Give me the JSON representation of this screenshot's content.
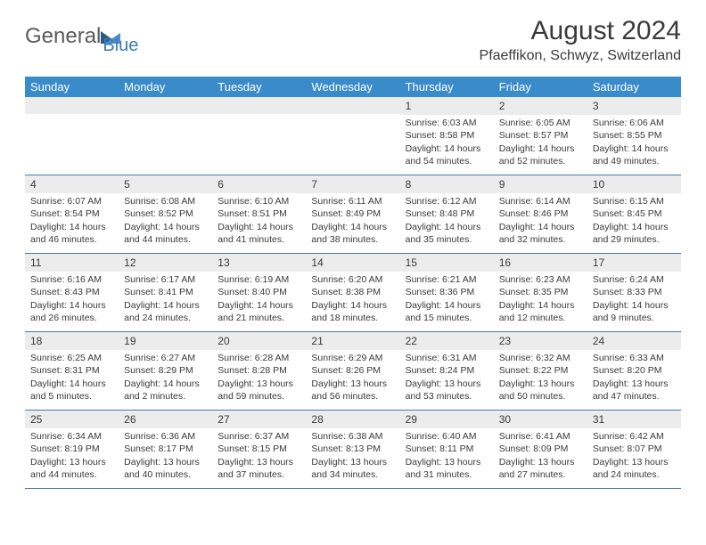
{
  "logo": {
    "text1": "General",
    "text2": "Blue",
    "iconColorDark": "#2a5a8a",
    "iconColorLight": "#4a8fc9"
  },
  "header": {
    "title": "August 2024",
    "location": "Pfaeffikon, Schwyz, Switzerland"
  },
  "colors": {
    "headerBar": "#3a8bc9",
    "dayHeaderBg": "#ececec",
    "borderColor": "#4a7aa8",
    "textColor": "#3a3a3a"
  },
  "weekdays": [
    "Sunday",
    "Monday",
    "Tuesday",
    "Wednesday",
    "Thursday",
    "Friday",
    "Saturday"
  ],
  "weeks": [
    [
      null,
      null,
      null,
      null,
      {
        "day": "1",
        "sunrise": "Sunrise: 6:03 AM",
        "sunset": "Sunset: 8:58 PM",
        "daylight": "Daylight: 14 hours and 54 minutes."
      },
      {
        "day": "2",
        "sunrise": "Sunrise: 6:05 AM",
        "sunset": "Sunset: 8:57 PM",
        "daylight": "Daylight: 14 hours and 52 minutes."
      },
      {
        "day": "3",
        "sunrise": "Sunrise: 6:06 AM",
        "sunset": "Sunset: 8:55 PM",
        "daylight": "Daylight: 14 hours and 49 minutes."
      }
    ],
    [
      {
        "day": "4",
        "sunrise": "Sunrise: 6:07 AM",
        "sunset": "Sunset: 8:54 PM",
        "daylight": "Daylight: 14 hours and 46 minutes."
      },
      {
        "day": "5",
        "sunrise": "Sunrise: 6:08 AM",
        "sunset": "Sunset: 8:52 PM",
        "daylight": "Daylight: 14 hours and 44 minutes."
      },
      {
        "day": "6",
        "sunrise": "Sunrise: 6:10 AM",
        "sunset": "Sunset: 8:51 PM",
        "daylight": "Daylight: 14 hours and 41 minutes."
      },
      {
        "day": "7",
        "sunrise": "Sunrise: 6:11 AM",
        "sunset": "Sunset: 8:49 PM",
        "daylight": "Daylight: 14 hours and 38 minutes."
      },
      {
        "day": "8",
        "sunrise": "Sunrise: 6:12 AM",
        "sunset": "Sunset: 8:48 PM",
        "daylight": "Daylight: 14 hours and 35 minutes."
      },
      {
        "day": "9",
        "sunrise": "Sunrise: 6:14 AM",
        "sunset": "Sunset: 8:46 PM",
        "daylight": "Daylight: 14 hours and 32 minutes."
      },
      {
        "day": "10",
        "sunrise": "Sunrise: 6:15 AM",
        "sunset": "Sunset: 8:45 PM",
        "daylight": "Daylight: 14 hours and 29 minutes."
      }
    ],
    [
      {
        "day": "11",
        "sunrise": "Sunrise: 6:16 AM",
        "sunset": "Sunset: 8:43 PM",
        "daylight": "Daylight: 14 hours and 26 minutes."
      },
      {
        "day": "12",
        "sunrise": "Sunrise: 6:17 AM",
        "sunset": "Sunset: 8:41 PM",
        "daylight": "Daylight: 14 hours and 24 minutes."
      },
      {
        "day": "13",
        "sunrise": "Sunrise: 6:19 AM",
        "sunset": "Sunset: 8:40 PM",
        "daylight": "Daylight: 14 hours and 21 minutes."
      },
      {
        "day": "14",
        "sunrise": "Sunrise: 6:20 AM",
        "sunset": "Sunset: 8:38 PM",
        "daylight": "Daylight: 14 hours and 18 minutes."
      },
      {
        "day": "15",
        "sunrise": "Sunrise: 6:21 AM",
        "sunset": "Sunset: 8:36 PM",
        "daylight": "Daylight: 14 hours and 15 minutes."
      },
      {
        "day": "16",
        "sunrise": "Sunrise: 6:23 AM",
        "sunset": "Sunset: 8:35 PM",
        "daylight": "Daylight: 14 hours and 12 minutes."
      },
      {
        "day": "17",
        "sunrise": "Sunrise: 6:24 AM",
        "sunset": "Sunset: 8:33 PM",
        "daylight": "Daylight: 14 hours and 9 minutes."
      }
    ],
    [
      {
        "day": "18",
        "sunrise": "Sunrise: 6:25 AM",
        "sunset": "Sunset: 8:31 PM",
        "daylight": "Daylight: 14 hours and 5 minutes."
      },
      {
        "day": "19",
        "sunrise": "Sunrise: 6:27 AM",
        "sunset": "Sunset: 8:29 PM",
        "daylight": "Daylight: 14 hours and 2 minutes."
      },
      {
        "day": "20",
        "sunrise": "Sunrise: 6:28 AM",
        "sunset": "Sunset: 8:28 PM",
        "daylight": "Daylight: 13 hours and 59 minutes."
      },
      {
        "day": "21",
        "sunrise": "Sunrise: 6:29 AM",
        "sunset": "Sunset: 8:26 PM",
        "daylight": "Daylight: 13 hours and 56 minutes."
      },
      {
        "day": "22",
        "sunrise": "Sunrise: 6:31 AM",
        "sunset": "Sunset: 8:24 PM",
        "daylight": "Daylight: 13 hours and 53 minutes."
      },
      {
        "day": "23",
        "sunrise": "Sunrise: 6:32 AM",
        "sunset": "Sunset: 8:22 PM",
        "daylight": "Daylight: 13 hours and 50 minutes."
      },
      {
        "day": "24",
        "sunrise": "Sunrise: 6:33 AM",
        "sunset": "Sunset: 8:20 PM",
        "daylight": "Daylight: 13 hours and 47 minutes."
      }
    ],
    [
      {
        "day": "25",
        "sunrise": "Sunrise: 6:34 AM",
        "sunset": "Sunset: 8:19 PM",
        "daylight": "Daylight: 13 hours and 44 minutes."
      },
      {
        "day": "26",
        "sunrise": "Sunrise: 6:36 AM",
        "sunset": "Sunset: 8:17 PM",
        "daylight": "Daylight: 13 hours and 40 minutes."
      },
      {
        "day": "27",
        "sunrise": "Sunrise: 6:37 AM",
        "sunset": "Sunset: 8:15 PM",
        "daylight": "Daylight: 13 hours and 37 minutes."
      },
      {
        "day": "28",
        "sunrise": "Sunrise: 6:38 AM",
        "sunset": "Sunset: 8:13 PM",
        "daylight": "Daylight: 13 hours and 34 minutes."
      },
      {
        "day": "29",
        "sunrise": "Sunrise: 6:40 AM",
        "sunset": "Sunset: 8:11 PM",
        "daylight": "Daylight: 13 hours and 31 minutes."
      },
      {
        "day": "30",
        "sunrise": "Sunrise: 6:41 AM",
        "sunset": "Sunset: 8:09 PM",
        "daylight": "Daylight: 13 hours and 27 minutes."
      },
      {
        "day": "31",
        "sunrise": "Sunrise: 6:42 AM",
        "sunset": "Sunset: 8:07 PM",
        "daylight": "Daylight: 13 hours and 24 minutes."
      }
    ]
  ]
}
